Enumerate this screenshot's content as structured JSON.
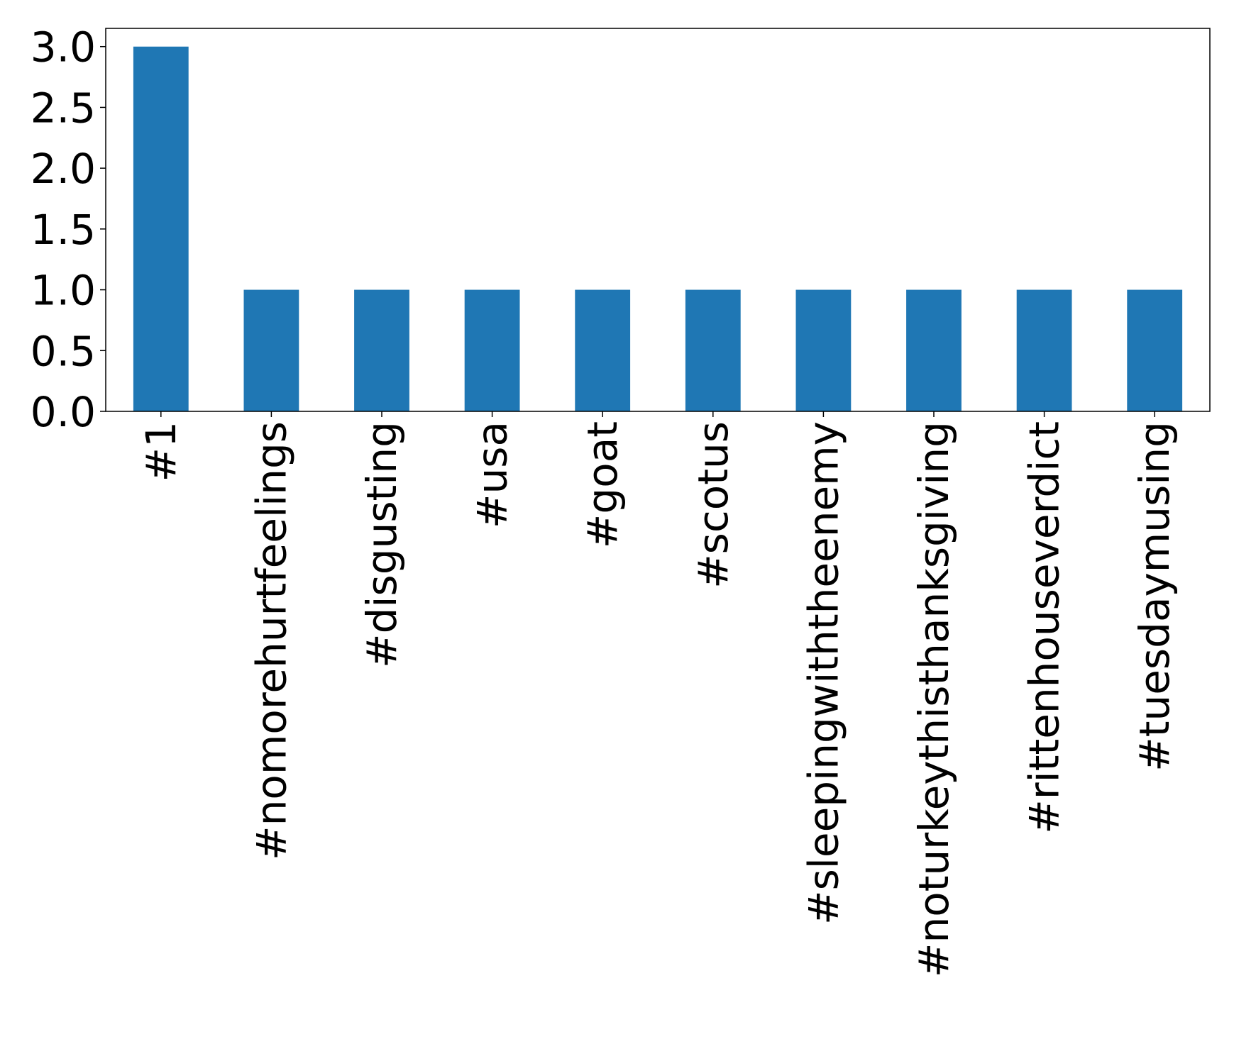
{
  "chart_data": {
    "type": "bar",
    "categories": [
      "#1",
      "#nomorehurtfeelings",
      "#disgusting",
      "#usa",
      "#goat",
      "#scotus",
      "#sleepingwiththeenemy",
      "#noturkeythisthanksgiving",
      "#rittenhouseverdict",
      "#tuesdaymusing"
    ],
    "values": [
      3,
      1,
      1,
      1,
      1,
      1,
      1,
      1,
      1,
      1
    ],
    "color": "#1f77b4",
    "ylim": [
      0,
      3.15
    ],
    "yticks": [
      {
        "value": 0,
        "label": "0.0"
      },
      0.5,
      {
        "value": 1,
        "label": "1.0"
      },
      1.5,
      {
        "value": 2,
        "label": "2.0"
      },
      2.5,
      {
        "value": 3,
        "label": "3.0"
      }
    ],
    "grid": false
  }
}
